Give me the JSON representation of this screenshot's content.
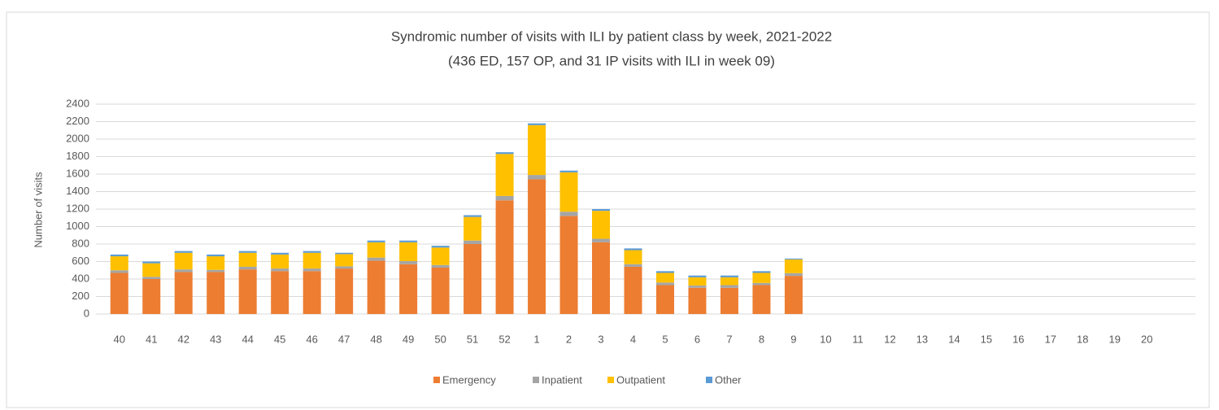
{
  "chart_data": {
    "type": "stacked_bar",
    "title": "Syndromic number of visits with ILI by patient class by week, 2021-2022",
    "subtitle": "(436 ED, 157 OP, and 31 IP visits with ILI in week 09)",
    "y_label": "Number of visits",
    "categories": [
      "40",
      "41",
      "42",
      "43",
      "44",
      "45",
      "46",
      "47",
      "48",
      "49",
      "50",
      "51",
      "52",
      "1",
      "2",
      "3",
      "4",
      "5",
      "6",
      "7",
      "8",
      "9",
      "10",
      "11",
      "12",
      "13",
      "14",
      "15",
      "16",
      "17",
      "18",
      "19",
      "20"
    ],
    "series": [
      {
        "name": "Emergency",
        "color": "#ed7d31",
        "values": [
          470,
          400,
          480,
          480,
          510,
          490,
          490,
          520,
          610,
          570,
          530,
          800,
          1300,
          1540,
          1120,
          820,
          540,
          330,
          300,
          300,
          330,
          436,
          null,
          null,
          null,
          null,
          null,
          null,
          null,
          null,
          null,
          null,
          null
        ]
      },
      {
        "name": "Inpatient",
        "color": "#a5a5a5",
        "values": [
          30,
          25,
          30,
          25,
          30,
          30,
          30,
          25,
          35,
          35,
          30,
          40,
          50,
          50,
          50,
          40,
          30,
          30,
          25,
          30,
          25,
          31,
          null,
          null,
          null,
          null,
          null,
          null,
          null,
          null,
          null,
          null,
          null
        ]
      },
      {
        "name": "Outpatient",
        "color": "#ffc000",
        "values": [
          160,
          155,
          190,
          155,
          160,
          160,
          180,
          140,
          175,
          215,
          200,
          270,
          480,
          570,
          450,
          320,
          160,
          110,
          95,
          90,
          115,
          157,
          null,
          null,
          null,
          null,
          null,
          null,
          null,
          null,
          null,
          null,
          null
        ]
      },
      {
        "name": "Other",
        "color": "#5b9bd5",
        "values": [
          20,
          20,
          20,
          20,
          20,
          20,
          20,
          15,
          20,
          20,
          20,
          20,
          20,
          20,
          20,
          20,
          20,
          20,
          20,
          20,
          20,
          10,
          null,
          null,
          null,
          null,
          null,
          null,
          null,
          null,
          null,
          null,
          null
        ]
      }
    ],
    "ylim": [
      0,
      2400
    ],
    "yticks": [
      0,
      200,
      400,
      600,
      800,
      1000,
      1200,
      1400,
      1600,
      1800,
      2000,
      2200,
      2400
    ],
    "grid": true,
    "legend": "bottom"
  }
}
